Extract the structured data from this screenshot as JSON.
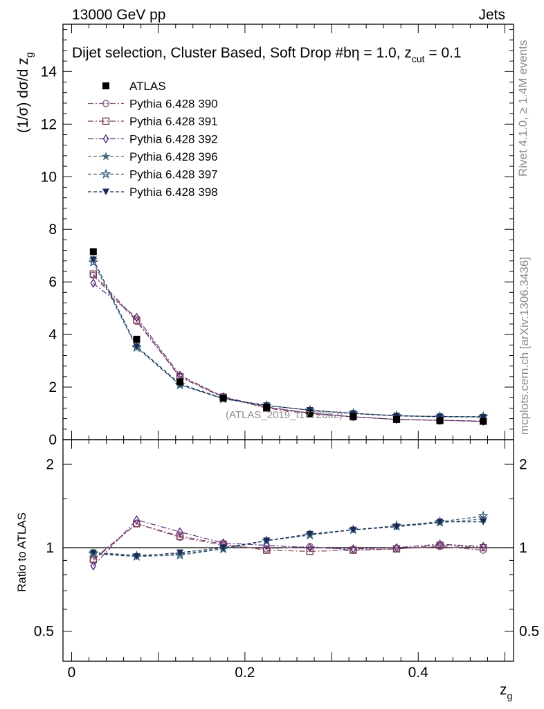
{
  "header": {
    "left_label": "13000 GeV pp",
    "right_label": "Jets"
  },
  "side_labels": {
    "rivet": "Rivet 4.1.0, ≥ 1.4M events",
    "mcplots": "mcplots.cern.ch [arXiv:1306.3436]"
  },
  "colors": {
    "data": "#000000",
    "p390": "#8b5a83",
    "p391": "#7a3a4f",
    "p392": "#5a2a7a",
    "p396": "#4a6e7e",
    "p397": "#2f5a78",
    "p398": "#1c2a55"
  },
  "chart_data": [
    {
      "type": "line",
      "title": "Dijet selection, Cluster Based, Soft Drop #b",
      "title_suffix": "η = 1.0, z",
      "title_sub": "cut",
      "title_end": " = 0.1",
      "analysis_id": "(ATLAS_2019_I1772062)",
      "xlabel": "z",
      "xlabel_sub": "g",
      "ylabel": "(1/σ) dσ/d z",
      "ylabel_sub": "g",
      "xlim": [
        -0.01,
        0.51
      ],
      "ylim": [
        0,
        15.8
      ],
      "yticks": [
        0,
        2,
        4,
        6,
        8,
        10,
        12,
        14
      ],
      "x": [
        0.025,
        0.075,
        0.125,
        0.175,
        0.225,
        0.275,
        0.325,
        0.375,
        0.425,
        0.475
      ],
      "data": {
        "name": "ATLAS",
        "values": [
          7.15,
          3.82,
          2.2,
          1.58,
          1.22,
          1.0,
          0.88,
          0.77,
          0.72,
          0.7
        ]
      },
      "series": [
        {
          "name": "Pythia 6.428 390",
          "key": "p390",
          "marker": "circle-open",
          "dash": "dashdot",
          "values": [
            6.25,
            4.5,
            2.38,
            1.6,
            1.22,
            1.02,
            0.87,
            0.77,
            0.73,
            0.69
          ]
        },
        {
          "name": "Pythia 6.428 391",
          "key": "p391",
          "marker": "square-open",
          "dash": "dashdot",
          "values": [
            6.3,
            4.55,
            2.4,
            1.62,
            1.2,
            0.98,
            0.87,
            0.77,
            0.74,
            0.7
          ]
        },
        {
          "name": "Pythia 6.428 392",
          "key": "p392",
          "marker": "diamond-open",
          "dash": "dashdot",
          "values": [
            5.95,
            4.65,
            2.45,
            1.63,
            1.24,
            1.01,
            0.87,
            0.77,
            0.74,
            0.7
          ]
        },
        {
          "name": "Pythia 6.428 396",
          "key": "p396",
          "marker": "star-filled",
          "dash": "dashed",
          "values": [
            6.85,
            3.55,
            2.1,
            1.56,
            1.3,
            1.12,
            0.99,
            0.9,
            0.87,
            0.86
          ]
        },
        {
          "name": "Pythia 6.428 397",
          "key": "p397",
          "marker": "star-open",
          "dash": "dashed",
          "values": [
            6.75,
            3.5,
            2.08,
            1.55,
            1.3,
            1.12,
            1.0,
            0.91,
            0.88,
            0.88
          ]
        },
        {
          "name": "Pythia 6.428 398",
          "key": "p398",
          "marker": "triangle-down-filled",
          "dash": "dashed",
          "values": [
            6.85,
            3.55,
            2.12,
            1.57,
            1.3,
            1.12,
            1.0,
            0.91,
            0.88,
            0.86
          ]
        }
      ]
    },
    {
      "type": "line",
      "ylabel": "Ratio to ATLAS",
      "xlabel": "z",
      "xlabel_sub": "g",
      "xlim": [
        -0.01,
        0.51
      ],
      "ylim": [
        0.39,
        2.45
      ],
      "scale": "log",
      "yticks": [
        0.5,
        1,
        2
      ],
      "ytick_labels": [
        "0.5",
        "1",
        "2"
      ],
      "xticks": [
        0,
        0.2,
        0.4
      ],
      "xtick_labels": [
        "0",
        "0.2",
        "0.4"
      ],
      "reference": 1,
      "x": [
        0.025,
        0.075,
        0.125,
        0.175,
        0.225,
        0.275,
        0.325,
        0.375,
        0.425,
        0.475
      ],
      "series": [
        {
          "name": "Pythia 6.428 390",
          "key": "p390",
          "marker": "circle-open",
          "dash": "dashdot",
          "values": [
            0.9,
            1.22,
            1.09,
            1.02,
            0.99,
            1.01,
            0.98,
            0.99,
            1.01,
            0.98
          ]
        },
        {
          "name": "Pythia 6.428 391",
          "key": "p391",
          "marker": "square-open",
          "dash": "dashdot",
          "values": [
            0.91,
            1.22,
            1.1,
            1.03,
            0.98,
            0.97,
            0.98,
            0.99,
            1.02,
            1.0
          ]
        },
        {
          "name": "Pythia 6.428 392",
          "key": "p392",
          "marker": "diamond-open",
          "dash": "dashdot",
          "values": [
            0.86,
            1.26,
            1.14,
            1.04,
            1.02,
            1.0,
            0.99,
            1.0,
            1.03,
            1.01
          ]
        },
        {
          "name": "Pythia 6.428 396",
          "key": "p396",
          "marker": "star-filled",
          "dash": "dashed",
          "values": [
            0.96,
            0.94,
            0.95,
            0.99,
            1.06,
            1.12,
            1.16,
            1.19,
            1.23,
            1.27
          ]
        },
        {
          "name": "Pythia 6.428 397",
          "key": "p397",
          "marker": "star-open",
          "dash": "dashed",
          "values": [
            0.95,
            0.93,
            0.94,
            0.99,
            1.06,
            1.11,
            1.16,
            1.2,
            1.24,
            1.3
          ]
        },
        {
          "name": "Pythia 6.428 398",
          "key": "p398",
          "marker": "triangle-down-filled",
          "dash": "dashed",
          "values": [
            0.96,
            0.93,
            0.96,
            1.0,
            1.06,
            1.12,
            1.16,
            1.19,
            1.24,
            1.24
          ]
        }
      ]
    }
  ]
}
